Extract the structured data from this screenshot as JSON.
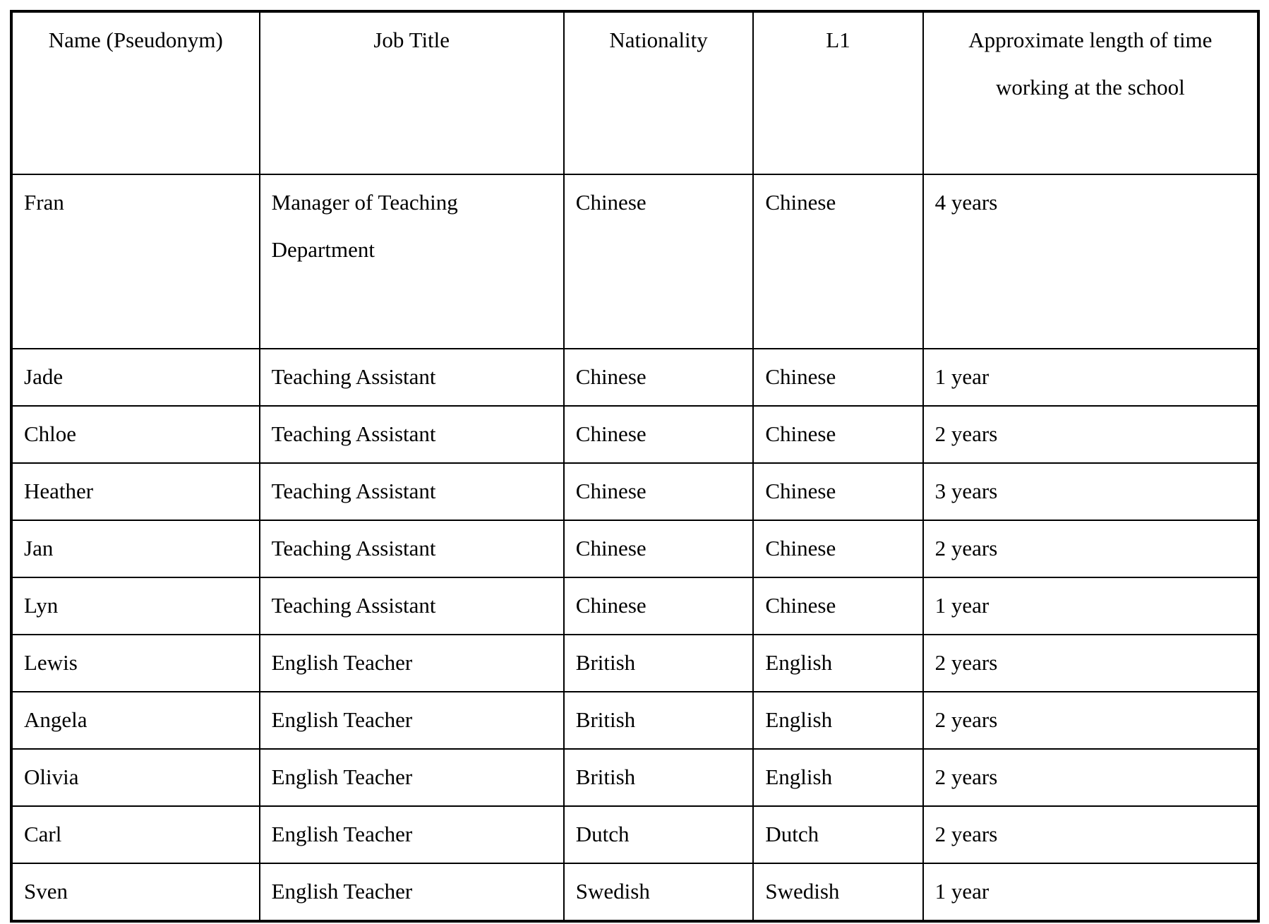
{
  "table": {
    "headers": {
      "name": "Name (Pseudonym)",
      "job_title": "Job Title",
      "nationality": "Nationality",
      "l1": "L1",
      "time": "Approximate length of time working at the school"
    },
    "rows": [
      {
        "name": "Fran",
        "job_title": "Manager of Teaching Department",
        "nationality": "Chinese",
        "l1": "Chinese",
        "time": "4 years"
      },
      {
        "name": "Jade",
        "job_title": "Teaching Assistant",
        "nationality": "Chinese",
        "l1": "Chinese",
        "time": "1 year"
      },
      {
        "name": "Chloe",
        "job_title": "Teaching Assistant",
        "nationality": "Chinese",
        "l1": "Chinese",
        "time": "2 years"
      },
      {
        "name": "Heather",
        "job_title": "Teaching Assistant",
        "nationality": "Chinese",
        "l1": "Chinese",
        "time": "3 years"
      },
      {
        "name": "Jan",
        "job_title": "Teaching Assistant",
        "nationality": "Chinese",
        "l1": "Chinese",
        "time": "2 years"
      },
      {
        "name": "Lyn",
        "job_title": "Teaching Assistant",
        "nationality": "Chinese",
        "l1": "Chinese",
        "time": "1 year"
      },
      {
        "name": "Lewis",
        "job_title": "English Teacher",
        "nationality": "British",
        "l1": "English",
        "time": "2 years"
      },
      {
        "name": "Angela",
        "job_title": "English Teacher",
        "nationality": "British",
        "l1": "English",
        "time": "2 years"
      },
      {
        "name": "Olivia",
        "job_title": "English Teacher",
        "nationality": "British",
        "l1": "English",
        "time": "2 years"
      },
      {
        "name": "Carl",
        "job_title": "English Teacher",
        "nationality": "Dutch",
        "l1": "Dutch",
        "time": "2 years"
      },
      {
        "name": "Sven",
        "job_title": "English Teacher",
        "nationality": "Swedish",
        "l1": "Swedish",
        "time": "1 year"
      }
    ]
  },
  "colors": {
    "border": "#000000",
    "background": "#ffffff",
    "text": "#000000"
  }
}
